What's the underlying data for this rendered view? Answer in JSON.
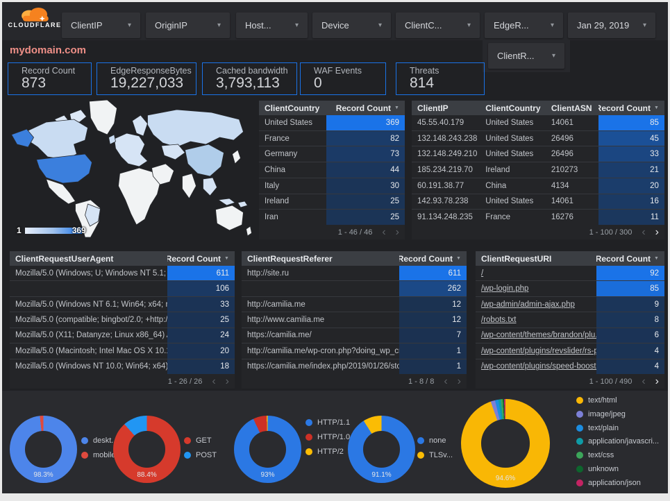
{
  "topbar": {
    "brand": "CLOUDFLARE",
    "filters": [
      {
        "label": "ClientIP"
      },
      {
        "label": "OriginIP"
      },
      {
        "label": "Host..."
      },
      {
        "label": "Device"
      },
      {
        "label": "ClientC..."
      },
      {
        "label": "EdgeR..."
      }
    ],
    "date_filter": "Jan 29, 2019",
    "secondary_filter": "ClientR..."
  },
  "title": "mydomain.com",
  "scorecards": [
    {
      "label": "Record Count",
      "value": "873"
    },
    {
      "label": "EdgeResponseBytes",
      "value": "19,227,033"
    },
    {
      "label": "Cached bandwidth",
      "value": "3,793,113"
    },
    {
      "label": "WAF Events",
      "value": "0"
    },
    {
      "label": "Threats",
      "value": "814"
    }
  ],
  "map": {
    "legend_min": "1",
    "legend_max": "369"
  },
  "icons": {
    "caret_down": "▾",
    "sort_desc": "▼",
    "page_prev": "‹",
    "page_next": "›",
    "legend_up": "▲",
    "legend_down": "▼"
  },
  "heat": {
    "base": "#1b3150",
    "accent": "#1a73e8"
  },
  "tables": [
    {
      "id": "client-country",
      "columns": [
        {
          "label": "ClientCountry"
        },
        {
          "label": "Record Count",
          "sort": true
        }
      ],
      "rows": [
        [
          "United States",
          369
        ],
        [
          "France",
          82
        ],
        [
          "Germany",
          73
        ],
        [
          "China",
          44
        ],
        [
          "Italy",
          30
        ],
        [
          "Ireland",
          25
        ],
        [
          "Iran",
          25
        ]
      ],
      "pagination": {
        "text": "1 - 46 / 46",
        "prev": false,
        "next": false
      }
    },
    {
      "id": "client-ip",
      "columns": [
        {
          "label": "ClientIP"
        },
        {
          "label": "ClientCountry"
        },
        {
          "label": "ClientASN"
        },
        {
          "label": "Record Count",
          "sort": true
        }
      ],
      "rows": [
        [
          "45.55.40.179",
          "United States",
          "14061",
          85
        ],
        [
          "132.148.243.238",
          "United States",
          "26496",
          45
        ],
        [
          "132.148.249.210",
          "United States",
          "26496",
          33
        ],
        [
          "185.234.219.70",
          "Ireland",
          "210273",
          21
        ],
        [
          "60.191.38.77",
          "China",
          "4134",
          20
        ],
        [
          "142.93.78.238",
          "United States",
          "14061",
          16
        ],
        [
          "91.134.248.235",
          "France",
          "16276",
          11
        ]
      ],
      "pagination": {
        "text": "1 - 100 / 300",
        "prev": false,
        "next": true
      }
    },
    {
      "id": "user-agent",
      "columns": [
        {
          "label": "ClientRequestUserAgent"
        },
        {
          "label": "Record Count",
          "sort": true
        }
      ],
      "rows": [
        [
          "Mozilla/5.0 (Windows; U; Windows NT 5.1; en-U...",
          611
        ],
        [
          "",
          106
        ],
        [
          "Mozilla/5.0 (Windows NT 6.1; Win64; x64; rv:64...",
          33
        ],
        [
          "Mozilla/5.0 (compatible; bingbot/2.0; +http://w...",
          25
        ],
        [
          "Mozilla/5.0 (X11; Datanyze; Linux x86_64) Appl...",
          24
        ],
        [
          "Mozilla/5.0 (Macintosh; Intel Mac OS X 10.11; r...",
          20
        ],
        [
          "Mozilla/5.0 (Windows NT 10.0; Win64; x64) App...",
          18
        ]
      ],
      "pagination": {
        "text": "1 - 26 / 26",
        "prev": false,
        "next": false
      }
    },
    {
      "id": "referer",
      "columns": [
        {
          "label": "ClientRequestReferer"
        },
        {
          "label": "Record Count",
          "sort": true
        }
      ],
      "rows": [
        [
          "http://site.ru",
          611
        ],
        [
          "",
          262
        ],
        [
          "http://camilia.me",
          12
        ],
        [
          "http://www.camilia.me",
          12
        ],
        [
          "https://camilia.me/",
          7
        ],
        [
          "http://camilia.me/wp-cron.php?doing_wp_cron...",
          1
        ],
        [
          "https://camilia.me/index.php/2019/01/26/stor...",
          1
        ]
      ],
      "pagination": {
        "text": "1 - 8 / 8",
        "prev": false,
        "next": false
      }
    },
    {
      "id": "uri",
      "links": true,
      "columns": [
        {
          "label": "ClientRequestURI"
        },
        {
          "label": "Record Count",
          "sort": true
        }
      ],
      "rows": [
        [
          "/",
          92
        ],
        [
          "/wp-login.php",
          85
        ],
        [
          "/wp-admin/admin-ajax.php",
          9
        ],
        [
          "/robots.txt",
          8
        ],
        [
          "/wp-content/themes/brandon/plu...",
          6
        ],
        [
          "/wp-content/plugins/revslider/rs-p...",
          4
        ],
        [
          "/wp-content/plugins/speed-booste...",
          4
        ]
      ],
      "pagination": {
        "text": "1 - 100 / 490",
        "prev": false,
        "next": true
      }
    }
  ],
  "chart_data": [
    {
      "type": "pie",
      "name": "device-type",
      "labels": [
        "deskt...",
        "mobile"
      ],
      "values": [
        98.3,
        1.7
      ],
      "colors": [
        "#4d85ea",
        "#df4a3e"
      ],
      "center_label": "98.3%",
      "legend_position": "right"
    },
    {
      "type": "pie",
      "name": "http-method",
      "labels": [
        "GET",
        "POST"
      ],
      "values": [
        88.4,
        11.6
      ],
      "colors": [
        "#d63a2c",
        "#2196f3"
      ],
      "center_label": "88.4%",
      "legend_position": "right"
    },
    {
      "type": "pie",
      "name": "http-version",
      "labels": [
        "HTTP/1.1",
        "HTTP/1.0",
        "HTTP/2"
      ],
      "values": [
        93,
        6.5,
        0.5
      ],
      "colors": [
        "#2b78e4",
        "#cd3026",
        "#fbbc04"
      ],
      "center_label": "93%",
      "legend_position": "right"
    },
    {
      "type": "pie",
      "name": "tls-version",
      "labels": [
        "none",
        "TLSv..."
      ],
      "values": [
        91.1,
        8.9
      ],
      "colors": [
        "#2b78e4",
        "#fbbc04"
      ],
      "center_label": "91.1%",
      "legend_position": "right"
    },
    {
      "type": "pie",
      "name": "content-type",
      "labels": [
        "text/html",
        "image/jpeg",
        "text/plain",
        "application/javascri...",
        "text/css",
        "unknown",
        "application/json"
      ],
      "values": [
        94.6,
        1.6,
        1.2,
        0.9,
        0.7,
        0.5,
        0.5
      ],
      "colors": [
        "#f9b705",
        "#7c80d6",
        "#1c8de0",
        "#0f9ba6",
        "#3ca55a",
        "#0d652d",
        "#c32363"
      ],
      "center_label": "94.6%",
      "legend_position": "right"
    }
  ]
}
